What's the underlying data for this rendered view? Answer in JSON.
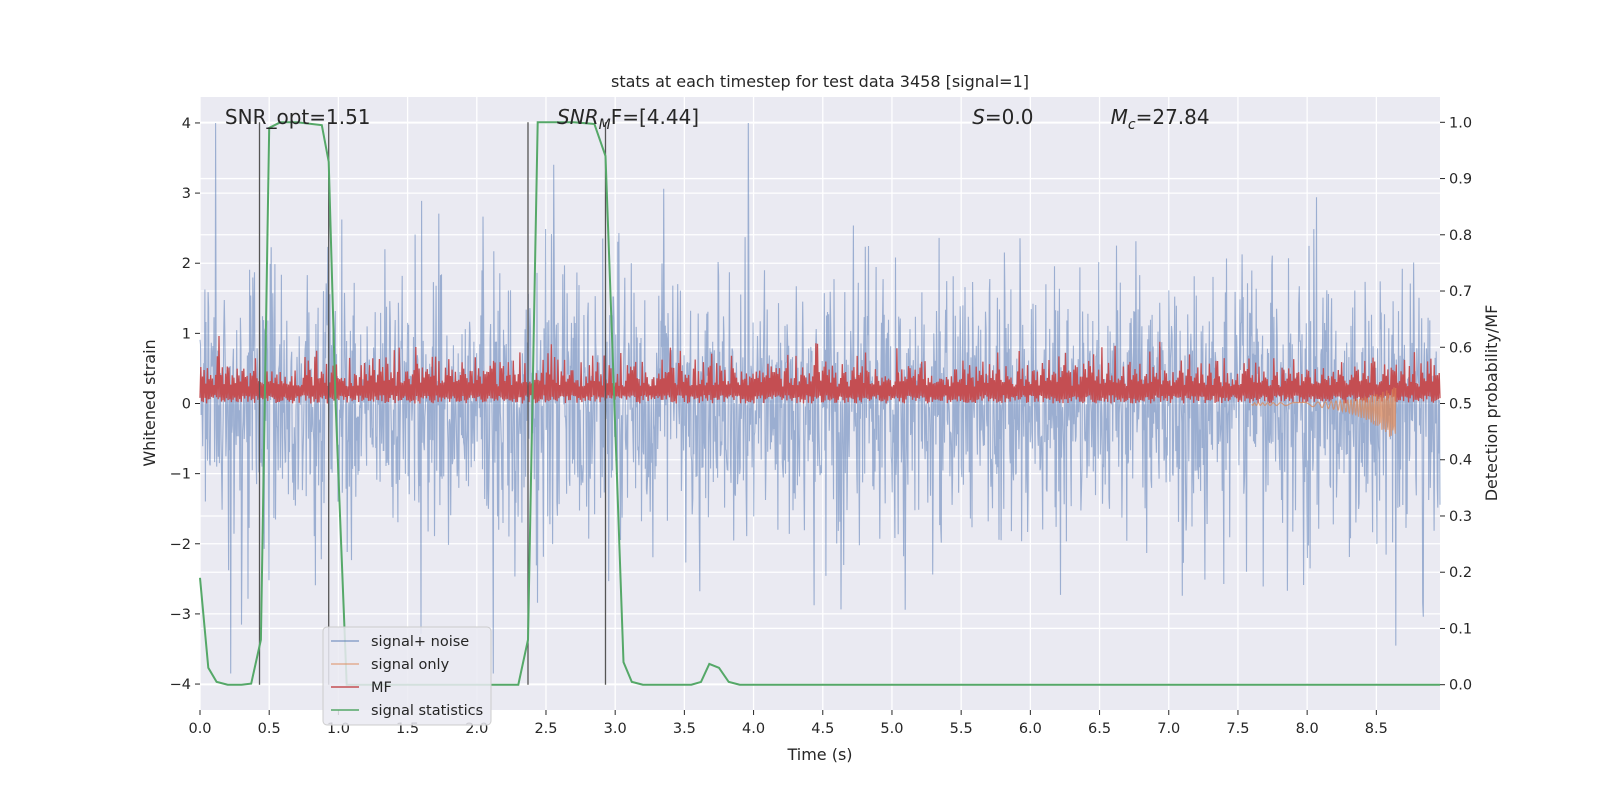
{
  "chart_data": {
    "type": "line",
    "title": "stats at each timestep for test data 3458 [signal=1]",
    "xlabel": "Time (s)",
    "ylabel_left": "Whitened strain",
    "ylabel_right": "Detection probability/MF",
    "xlim": [
      0.0,
      8.96
    ],
    "ylim_left": [
      -4.37,
      4.37
    ],
    "ylim_right": [
      -0.045,
      1.045
    ],
    "x_ticks": [
      "0.0",
      "0.5",
      "1.0",
      "1.5",
      "2.0",
      "2.5",
      "3.0",
      "3.5",
      "4.0",
      "4.5",
      "5.0",
      "5.5",
      "6.0",
      "6.5",
      "7.0",
      "7.5",
      "8.0",
      "8.5"
    ],
    "y_ticks_left": [
      "−4",
      "−3",
      "−2",
      "−1",
      "0",
      "1",
      "2",
      "3",
      "4"
    ],
    "y_ticks_right": [
      "0.0",
      "0.1",
      "0.2",
      "0.3",
      "0.4",
      "0.5",
      "0.6",
      "0.7",
      "0.8",
      "0.9",
      "1.0"
    ],
    "grid": true,
    "legend_position": "lower-left",
    "annotations": [
      {
        "text": "SNR_opt=1.51",
        "x": 0.18,
        "y": 4.0
      },
      {
        "base": "SNR",
        "sub": "M",
        "rest": "F=[4.44]",
        "x": 2.58,
        "y": 4.0
      },
      {
        "base": "S",
        "sub": "",
        "rest": "=0.0",
        "x": 5.58,
        "y": 4.0
      },
      {
        "base": "M",
        "sub": "c",
        "rest": "=27.84",
        "x": 6.58,
        "y": 4.0
      }
    ],
    "vertical_lines": [
      0.43,
      0.93,
      2.37,
      2.93
    ],
    "series": [
      {
        "name": "signal+ noise",
        "color": "#4c72b0",
        "axis": "left",
        "style": "dense noise, amplitude approx ±2.5, peaks up to 4.0 / down to −3.8",
        "envelope_upper_typical": 2.3,
        "envelope_lower_typical": -2.3
      },
      {
        "name": "signal only",
        "color": "#dd8452",
        "axis": "left",
        "style": "small chirp growing near end",
        "points": [
          [
            7.6,
            0.0
          ],
          [
            7.9,
            -0.03
          ],
          [
            8.1,
            -0.05
          ],
          [
            8.3,
            -0.08
          ],
          [
            8.5,
            -0.15
          ],
          [
            8.6,
            -0.3
          ],
          [
            8.64,
            -0.38
          ]
        ]
      },
      {
        "name": "MF",
        "color": "#c44e52",
        "axis": "right",
        "style": "noisy band between 0.5 and 0.6, peaks up to 0.62",
        "band": [
          0.5,
          0.6
        ]
      },
      {
        "name": "signal statistics",
        "color": "#55a868",
        "axis": "right",
        "points": [
          [
            0.0,
            0.19
          ],
          [
            0.06,
            0.03
          ],
          [
            0.12,
            0.005
          ],
          [
            0.2,
            0.0
          ],
          [
            0.3,
            0.0
          ],
          [
            0.37,
            0.002
          ],
          [
            0.44,
            0.08
          ],
          [
            0.5,
            0.99
          ],
          [
            0.58,
            1.0
          ],
          [
            0.7,
            1.0
          ],
          [
            0.88,
            0.995
          ],
          [
            0.93,
            0.93
          ],
          [
            0.98,
            0.5
          ],
          [
            1.06,
            0.0
          ],
          [
            1.2,
            0.0
          ],
          [
            2.0,
            0.0
          ],
          [
            2.3,
            0.0
          ],
          [
            2.37,
            0.08
          ],
          [
            2.44,
            1.0
          ],
          [
            2.7,
            1.0
          ],
          [
            2.85,
            0.997
          ],
          [
            2.93,
            0.94
          ],
          [
            2.98,
            0.6
          ],
          [
            3.06,
            0.04
          ],
          [
            3.12,
            0.005
          ],
          [
            3.2,
            0.0
          ],
          [
            3.55,
            0.0
          ],
          [
            3.62,
            0.005
          ],
          [
            3.68,
            0.037
          ],
          [
            3.75,
            0.03
          ],
          [
            3.82,
            0.005
          ],
          [
            3.9,
            0.0
          ],
          [
            4.5,
            0.0
          ],
          [
            6.0,
            0.0
          ],
          [
            8.0,
            0.0
          ],
          [
            8.96,
            0.0
          ]
        ]
      }
    ]
  }
}
